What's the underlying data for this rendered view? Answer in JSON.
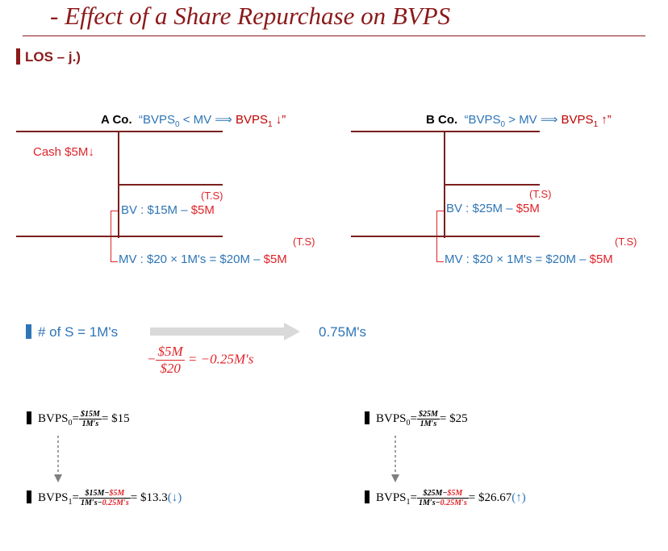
{
  "title": "- Effect of a Share Repurchase on BVPS",
  "los": "LOS – j.)",
  "a": {
    "company": "A Co.",
    "quote_open": "“BVPS",
    "sub0": "0",
    "mid": " < MV ⟹ ",
    "bvps1": "BVPS",
    "sub1": "1",
    "arrow": " ↓”",
    "cash": "Cash $5M↓",
    "ts1": "(T.S)",
    "bv": "BV : $15M – ",
    "bv_red": "$5M",
    "ts2": "(T.S)",
    "mv": "MV : $20 × 1M's = $20M – ",
    "mv_red": "$5M"
  },
  "b": {
    "company": "B Co.",
    "quote_open": "“BVPS",
    "sub0": "0",
    "mid": " > MV ⟹ ",
    "bvps1": "BVPS",
    "sub1": "1",
    "arrow": " ↑”",
    "ts1": "(T.S)",
    "bv": "BV : $25M – ",
    "bv_red": "$5M",
    "ts2": "(T.S)",
    "mv": "MV : $20 × 1M's = $20M – ",
    "mv_red": "$5M"
  },
  "shares": {
    "label": "# of S = 1M's",
    "result": "0.75M's",
    "minus": "−",
    "num": "$5M",
    "den": "$20",
    "eq": "= −0.25M′s"
  },
  "formulas": {
    "a0": {
      "lhs": "BVPS",
      "sub": "0",
      "eq": "=",
      "num": "$15M",
      "den": "1M′s",
      "rhs": "= $15"
    },
    "b0": {
      "lhs": "BVPS",
      "sub": "0",
      "eq": "=",
      "num": "$25M",
      "den": "1M′s",
      "rhs": "= $25"
    },
    "a1": {
      "lhs": "BVPS",
      "sub": "1",
      "eq": "=",
      "num_a": "$15M−",
      "num_b": "$5M",
      "den_a": "1M′s−",
      "den_b": "0.25M′s",
      "rhs": "= $13.3",
      "arrow": "(↓)"
    },
    "b1": {
      "lhs": "BVPS",
      "sub": "1",
      "eq": "=",
      "num_a": "$25M−",
      "num_b": "$5M",
      "den_a": "1M′s−",
      "den_b": "0.25M′s",
      "rhs": "= $26.67",
      "arrow": "(↑)"
    }
  },
  "colors": {
    "maroon": "#8b1a1a",
    "blue": "#2e75b6",
    "red": "#e0242a"
  }
}
